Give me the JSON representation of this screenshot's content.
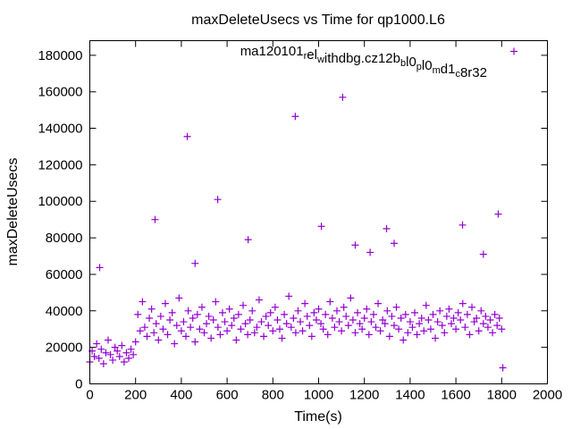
{
  "chart_data": {
    "type": "scatter",
    "title": "maxDeleteUsecs vs Time for qp1000.L6",
    "xlabel": "Time(s)",
    "ylabel": "maxDeleteUsecs",
    "xlim": [
      0,
      2000
    ],
    "ylim": [
      0,
      188000
    ],
    "xticks": [
      0,
      200,
      400,
      600,
      800,
      1000,
      1200,
      1400,
      1600,
      1800,
      2000
    ],
    "yticks": [
      0,
      20000,
      40000,
      60000,
      80000,
      100000,
      120000,
      140000,
      160000,
      180000
    ],
    "grid": false,
    "legend_position": "top-right",
    "series": [
      {
        "name": "ma120101_rel_withdbg.cz12b_bl0_pl0_md1_c8r32",
        "color": "#9400d3",
        "marker": "plus",
        "x": [
          0,
          10,
          20,
          30,
          40,
          50,
          60,
          70,
          80,
          90,
          100,
          110,
          120,
          130,
          140,
          150,
          160,
          170,
          180,
          190,
          200,
          210,
          220,
          230,
          240,
          250,
          260,
          270,
          280,
          290,
          300,
          310,
          320,
          330,
          340,
          350,
          360,
          370,
          380,
          390,
          400,
          410,
          420,
          430,
          440,
          450,
          460,
          470,
          480,
          490,
          500,
          510,
          520,
          530,
          540,
          550,
          560,
          570,
          580,
          590,
          600,
          610,
          620,
          630,
          640,
          650,
          660,
          670,
          680,
          690,
          700,
          710,
          720,
          730,
          740,
          750,
          760,
          770,
          780,
          790,
          800,
          810,
          820,
          830,
          840,
          850,
          860,
          870,
          880,
          890,
          900,
          910,
          920,
          930,
          940,
          950,
          960,
          970,
          980,
          990,
          1000,
          1010,
          1020,
          1030,
          1040,
          1050,
          1060,
          1070,
          1080,
          1090,
          1100,
          1110,
          1120,
          1130,
          1140,
          1150,
          1160,
          1170,
          1180,
          1190,
          1200,
          1210,
          1220,
          1230,
          1240,
          1250,
          1260,
          1270,
          1280,
          1290,
          1300,
          1310,
          1320,
          1330,
          1340,
          1350,
          1360,
          1370,
          1380,
          1390,
          1400,
          1410,
          1420,
          1430,
          1440,
          1450,
          1460,
          1470,
          1480,
          1490,
          1500,
          1510,
          1520,
          1530,
          1540,
          1550,
          1560,
          1570,
          1580,
          1590,
          1600,
          1610,
          1620,
          1630,
          1640,
          1650,
          1660,
          1670,
          1680,
          1690,
          1700,
          1710,
          1720,
          1730,
          1740,
          1750,
          1760,
          1770,
          1780,
          1790,
          1800,
          43,
          285,
          426,
          460,
          559,
          692,
          898,
          1012,
          1105,
          1160,
          1225,
          1297,
          1330,
          1629,
          1720,
          1785,
          1805
        ],
        "y": [
          12000,
          18000,
          15000,
          22000,
          14000,
          19000,
          11000,
          17000,
          24000,
          16000,
          13000,
          20000,
          18000,
          15000,
          21000,
          12000,
          17000,
          14000,
          19000,
          16000,
          23000,
          38000,
          29000,
          45000,
          31000,
          26000,
          36000,
          41000,
          28000,
          33000,
          24000,
          37000,
          30000,
          44000,
          27000,
          35000,
          39000,
          22000,
          32000,
          47000,
          29000,
          34000,
          26000,
          40000,
          31000,
          36000,
          23000,
          38000,
          30000,
          42000,
          28000,
          33000,
          37000,
          25000,
          35000,
          45000,
          31000,
          27000,
          39000,
          34000,
          29000,
          41000,
          32000,
          36000,
          24000,
          38000,
          30000,
          43000,
          33000,
          27000,
          35000,
          40000,
          28000,
          31000,
          46000,
          34000,
          26000,
          37000,
          32000,
          39000,
          29000,
          42000,
          35000,
          30000,
          25000,
          38000,
          33000,
          48000,
          31000,
          36000,
          28000,
          40000,
          34000,
          29000,
          44000,
          37000,
          32000,
          26000,
          39000,
          35000,
          41000,
          33000,
          30000,
          38000,
          27000,
          45000,
          36000,
          31000,
          40000,
          34000,
          29000,
          42000,
          37000,
          32000,
          47000,
          35000,
          28000,
          39000,
          33000,
          30000,
          36000,
          41000,
          27000,
          34000,
          38000,
          31000,
          44000,
          29000,
          35000,
          33000,
          40000,
          26000,
          37000,
          32000,
          42000,
          30000,
          36000,
          24000,
          38000,
          28000,
          34000,
          31000,
          39000,
          27000,
          33000,
          36000,
          29000,
          43000,
          35000,
          30000,
          38000,
          25000,
          34000,
          40000,
          32000,
          28000,
          37000,
          41000,
          33000,
          36000,
          30000,
          39000,
          35000,
          44000,
          31000,
          38000,
          27000,
          42000,
          34000,
          36000,
          29000,
          40000,
          33000,
          37000,
          31000,
          35000,
          28000,
          38000,
          32000,
          36000,
          30000,
          63700,
          90000,
          135500,
          66000,
          101000,
          79000,
          146500,
          86300,
          157000,
          76000,
          72000,
          85000,
          77000,
          87000,
          71000,
          93000,
          8800
        ]
      }
    ]
  }
}
